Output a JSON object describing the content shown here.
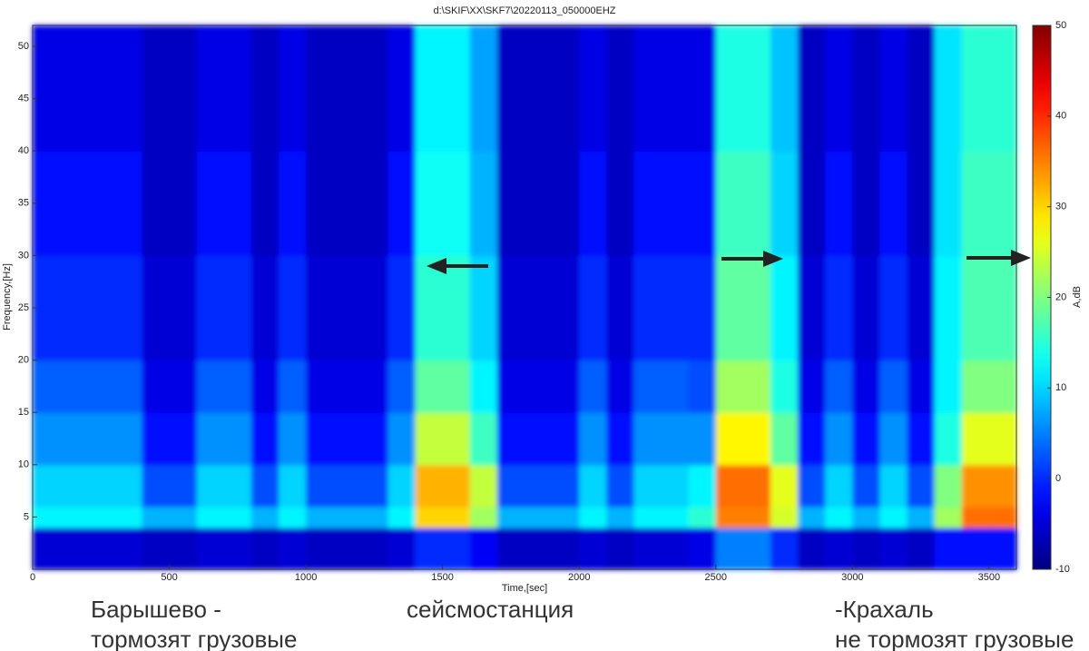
{
  "chart_data": {
    "type": "heatmap",
    "title": "d:\\SKIF\\XX\\SKF7\\20220113_050000EHZ",
    "x_label": "Time,[sec]",
    "y_label": "Frequency,[Hz]",
    "colorbar_label": "A,dB",
    "colormap": "jet",
    "clim": [
      -10,
      50
    ],
    "cticks": [
      -10,
      0,
      10,
      20,
      30,
      40,
      50
    ],
    "xlim": [
      0,
      3600
    ],
    "ylim": [
      0,
      52
    ],
    "xticks": [
      0,
      500,
      1000,
      1500,
      2000,
      2500,
      3000,
      3500
    ],
    "yticks": [
      5,
      10,
      15,
      20,
      25,
      30,
      35,
      40,
      45,
      50
    ],
    "x_edges": [
      0,
      100,
      200,
      300,
      400,
      500,
      600,
      700,
      800,
      900,
      1000,
      1100,
      1200,
      1300,
      1400,
      1500,
      1600,
      1700,
      1800,
      1900,
      2000,
      2100,
      2200,
      2300,
      2400,
      2500,
      2600,
      2700,
      2800,
      2900,
      3000,
      3100,
      3200,
      3300,
      3400,
      3500,
      3600
    ],
    "y_edges": [
      0,
      4,
      6,
      10,
      15,
      20,
      30,
      40,
      52
    ],
    "z": [
      [
        -5,
        -5,
        -5,
        -5,
        -6,
        -6,
        -5,
        -5,
        -6,
        -5,
        -6,
        -6,
        -6,
        -5,
        0,
        0,
        -3,
        -6,
        -6,
        -6,
        -5,
        -6,
        -5,
        -5,
        -4,
        5,
        5,
        0,
        -6,
        -5,
        -6,
        -5,
        -6,
        -2,
        -2,
        -2
      ],
      [
        12,
        12,
        12,
        12,
        8,
        8,
        12,
        12,
        8,
        12,
        8,
        8,
        8,
        12,
        30,
        30,
        22,
        8,
        8,
        8,
        12,
        8,
        12,
        12,
        15,
        35,
        35,
        25,
        8,
        12,
        8,
        12,
        8,
        22,
        36,
        36
      ],
      [
        10,
        10,
        10,
        10,
        2,
        2,
        10,
        10,
        2,
        10,
        2,
        2,
        2,
        10,
        32,
        32,
        24,
        2,
        2,
        2,
        10,
        2,
        10,
        10,
        12,
        36,
        36,
        26,
        2,
        10,
        2,
        10,
        2,
        20,
        34,
        34
      ],
      [
        6,
        6,
        6,
        6,
        -2,
        -2,
        6,
        6,
        -2,
        6,
        -2,
        -2,
        -2,
        6,
        24,
        24,
        16,
        -2,
        -2,
        -2,
        6,
        -2,
        6,
        6,
        6,
        28,
        28,
        18,
        -2,
        6,
        -2,
        6,
        -2,
        14,
        26,
        26
      ],
      [
        3,
        3,
        3,
        3,
        -4,
        -4,
        3,
        3,
        -4,
        3,
        -4,
        -4,
        -4,
        3,
        18,
        18,
        12,
        -4,
        -4,
        -4,
        3,
        -4,
        3,
        3,
        2,
        22,
        22,
        14,
        -4,
        3,
        -4,
        3,
        -4,
        12,
        20,
        20
      ],
      [
        0,
        0,
        0,
        0,
        -5,
        -5,
        0,
        0,
        -5,
        0,
        -5,
        -5,
        -5,
        0,
        15,
        15,
        10,
        -5,
        -5,
        -5,
        0,
        -5,
        0,
        0,
        0,
        18,
        18,
        12,
        -5,
        0,
        -5,
        0,
        -5,
        12,
        17,
        17
      ],
      [
        -2,
        -2,
        -2,
        -2,
        -6,
        -6,
        -2,
        -2,
        -6,
        -2,
        -6,
        -6,
        -6,
        -2,
        13,
        13,
        8,
        -6,
        -6,
        -6,
        -2,
        -6,
        -2,
        -2,
        -2,
        16,
        16,
        10,
        -6,
        -2,
        -6,
        -2,
        -6,
        11,
        16,
        16
      ],
      [
        -4,
        -4,
        -4,
        -4,
        -6,
        -6,
        -4,
        -4,
        -6,
        -4,
        -6,
        -6,
        -6,
        -4,
        12,
        12,
        7,
        -6,
        -6,
        -6,
        -4,
        -6,
        -4,
        -4,
        -4,
        14,
        14,
        9,
        -6,
        -4,
        -6,
        -4,
        -6,
        11,
        15,
        15
      ]
    ],
    "captions": [
      "Барышево -",
      "тормозят грузовые",
      "сейсмостанция",
      "-Крахаль",
      "не тормозят грузовые"
    ]
  }
}
